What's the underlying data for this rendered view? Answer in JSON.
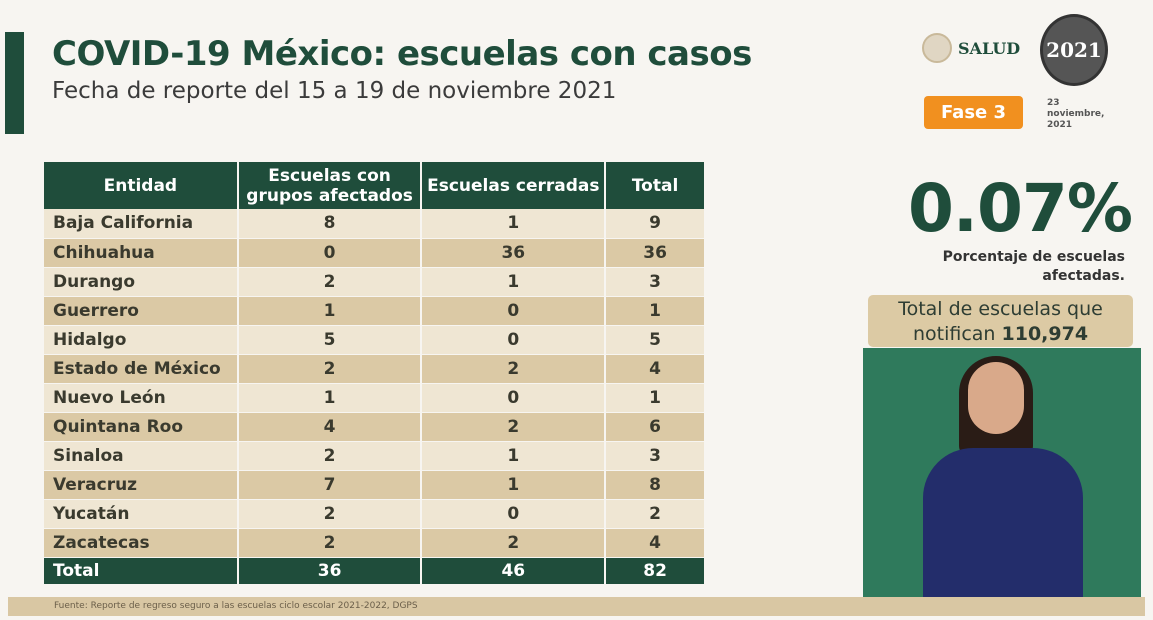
{
  "header": {
    "title": "COVID-19 México: escuelas con casos",
    "subtitle": "Fecha de reporte del 15 a 19 de noviembre 2021"
  },
  "logos": {
    "salud": "SALUD",
    "year_logo": "2021"
  },
  "phase": "Fase 3",
  "date": {
    "line1": "23",
    "line2": "noviembre,",
    "line3": "2021"
  },
  "colors": {
    "primary": "#1f4d3b",
    "accent": "#f1901f",
    "tan": "#dbc9a5"
  },
  "kpi": {
    "value": "0.07%",
    "label1": "Porcentaje de escuelas",
    "label2": "afectadas.",
    "total_line1": "Total de escuelas que",
    "total_prefix": "notifican",
    "total_value": "110,974"
  },
  "table": {
    "headers": [
      "Entidad",
      "Escuelas con grupos afectados",
      "Escuelas cerradas",
      "Total"
    ],
    "rows": [
      [
        "Baja California",
        "8",
        "1",
        "9"
      ],
      [
        "Chihuahua",
        "0",
        "36",
        "36"
      ],
      [
        "Durango",
        "2",
        "1",
        "3"
      ],
      [
        "Guerrero",
        "1",
        "0",
        "1"
      ],
      [
        "Hidalgo",
        "5",
        "0",
        "5"
      ],
      [
        "Estado de México",
        "2",
        "2",
        "4"
      ],
      [
        "Nuevo León",
        "1",
        "0",
        "1"
      ],
      [
        "Quintana Roo",
        "4",
        "2",
        "6"
      ],
      [
        "Sinaloa",
        "2",
        "1",
        "3"
      ],
      [
        "Veracruz",
        "7",
        "1",
        "8"
      ],
      [
        "Yucatán",
        "2",
        "0",
        "2"
      ],
      [
        "Zacatecas",
        "2",
        "2",
        "4"
      ]
    ],
    "total": [
      "Total",
      "36",
      "46",
      "82"
    ]
  },
  "source": "Fuente: Reporte de regreso seguro a las escuelas ciclo escolar 2021-2022, DGPS"
}
